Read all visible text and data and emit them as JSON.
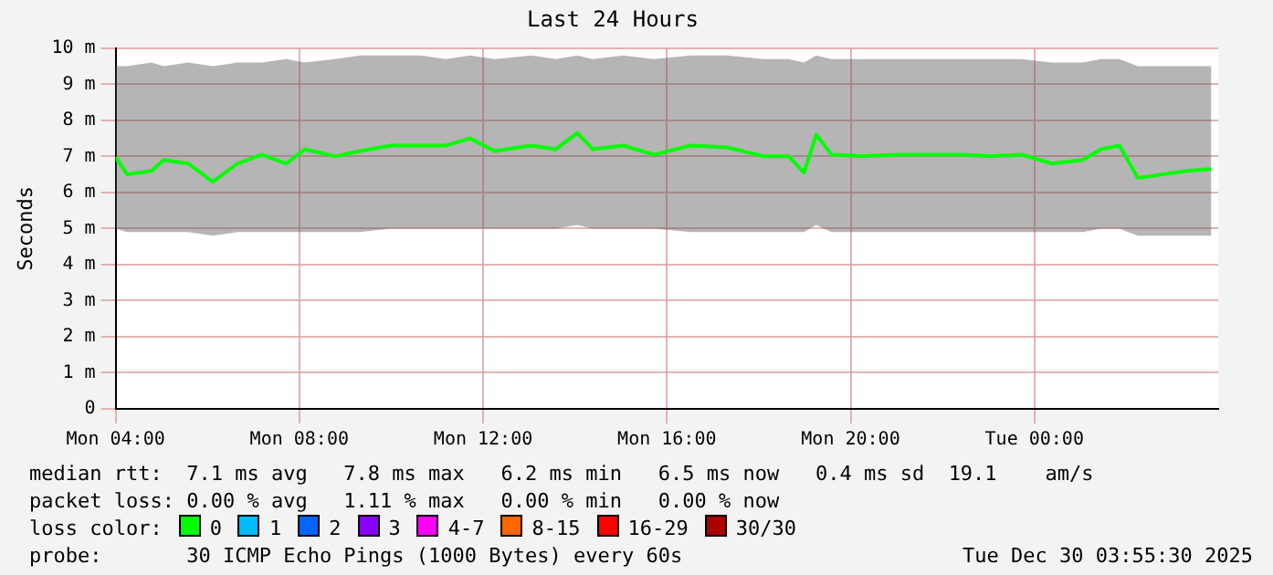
{
  "chart_data": {
    "type": "line",
    "title": "Last 24 Hours",
    "ylabel": "Seconds",
    "x": [
      "2025-12-29T04:00",
      "2025-12-29T04:15",
      "2025-12-29T04:47",
      "2025-12-29T05:03",
      "2025-12-29T05:35",
      "2025-12-29T06:07",
      "2025-12-29T06:39",
      "2025-12-29T07:11",
      "2025-12-29T07:43",
      "2025-12-29T08:07",
      "2025-12-29T08:47",
      "2025-12-29T09:19",
      "2025-12-29T09:59",
      "2025-12-29T10:39",
      "2025-12-29T11:11",
      "2025-12-29T11:43",
      "2025-12-29T12:15",
      "2025-12-29T13:03",
      "2025-12-29T13:35",
      "2025-12-29T14:03",
      "2025-12-29T14:23",
      "2025-12-29T15:03",
      "2025-12-29T15:43",
      "2025-12-29T16:31",
      "2025-12-29T17:19",
      "2025-12-29T18:07",
      "2025-12-29T18:39",
      "2025-12-29T18:59",
      "2025-12-29T19:15",
      "2025-12-29T19:35",
      "2025-12-29T20:15",
      "2025-12-29T21:03",
      "2025-12-29T21:43",
      "2025-12-29T22:23",
      "2025-12-29T23:03",
      "2025-12-29T23:43",
      "2025-12-30T00:23",
      "2025-12-30T01:03",
      "2025-12-30T01:27",
      "2025-12-30T01:51",
      "2025-12-30T02:15",
      "2025-12-30T02:47",
      "2025-12-30T03:19",
      "2025-12-30T03:51"
    ],
    "series": [
      {
        "color": "#00ff00",
        "values": [
          6.98,
          6.5,
          6.6,
          6.9,
          6.8,
          6.3,
          6.8,
          7.05,
          6.8,
          7.2,
          7.0,
          7.15,
          7.3,
          7.3,
          7.3,
          7.5,
          7.15,
          7.3,
          7.2,
          7.65,
          7.2,
          7.3,
          7.05,
          7.3,
          7.25,
          7.0,
          7.0,
          6.55,
          7.6,
          7.05,
          7.0,
          7.05,
          7.05,
          7.05,
          7.0,
          7.05,
          6.8,
          6.9,
          7.2,
          7.3,
          6.4,
          6.5,
          6.6,
          6.65
        ],
        "lower": [
          5.0,
          4.9,
          4.9,
          4.9,
          4.9,
          4.8,
          4.9,
          4.9,
          4.9,
          4.9,
          4.9,
          4.9,
          5.0,
          5.0,
          5.0,
          5.0,
          5.0,
          5.0,
          5.0,
          5.1,
          5.0,
          5.0,
          5.0,
          4.9,
          4.9,
          4.9,
          4.9,
          4.9,
          5.1,
          4.9,
          4.9,
          4.9,
          4.9,
          4.9,
          4.9,
          4.9,
          4.9,
          4.9,
          5.0,
          5.0,
          4.8,
          4.8,
          4.8,
          4.8
        ],
        "upper": [
          9.5,
          9.5,
          9.6,
          9.5,
          9.6,
          9.5,
          9.6,
          9.6,
          9.7,
          9.6,
          9.7,
          9.8,
          9.8,
          9.8,
          9.7,
          9.8,
          9.7,
          9.8,
          9.7,
          9.8,
          9.7,
          9.8,
          9.7,
          9.8,
          9.8,
          9.7,
          9.7,
          9.6,
          9.8,
          9.7,
          9.7,
          9.7,
          9.7,
          9.7,
          9.7,
          9.7,
          9.6,
          9.6,
          9.7,
          9.7,
          9.5,
          9.5,
          9.5,
          9.5
        ]
      }
    ],
    "xlim": [
      "2025-12-29T04:00",
      "2025-12-30T04:00"
    ],
    "xticks": [
      {
        "value": "2025-12-29T04:00",
        "label": "Mon 04:00"
      },
      {
        "value": "2025-12-29T08:00",
        "label": "Mon 08:00"
      },
      {
        "value": "2025-12-29T12:00",
        "label": "Mon 12:00"
      },
      {
        "value": "2025-12-29T16:00",
        "label": "Mon 16:00"
      },
      {
        "value": "2025-12-29T20:00",
        "label": "Mon 20:00"
      },
      {
        "value": "2025-12-30T00:00",
        "label": "Tue 00:00"
      }
    ],
    "ylim": [
      0,
      10
    ],
    "yticks": [
      0,
      {
        "value": 1,
        "label": "1 m"
      },
      {
        "value": 2,
        "label": "2 m"
      },
      {
        "value": 3,
        "label": "3 m"
      },
      {
        "value": 4,
        "label": "4 m"
      },
      {
        "value": 5,
        "label": "5 m"
      },
      {
        "value": 6,
        "label": "6 m"
      },
      {
        "value": 7,
        "label": "7 m"
      },
      {
        "value": 8,
        "label": "8 m"
      },
      {
        "value": 9,
        "label": "9 m"
      },
      {
        "value": 10,
        "label": "10 m"
      }
    ],
    "grid": true,
    "legend": false,
    "marker": "none",
    "line_style": "solid",
    "annotations": [
      "median rtt:  7.1 ms avg   7.8 ms max   6.2 ms min   6.5 ms now   0.4 ms sd  19.1    am/s",
      "packet loss: 0.00 % avg   1.11 % max   0.00 % min   0.00 % now",
      "loss color:",
      "0",
      "1",
      "2",
      "3",
      "4-7",
      "8-15",
      "16-29",
      "30/30",
      "probe:       30 ICMP Echo Pings (1000 Bytes) every 60s",
      "Tue Dec 30 03:55:30 2025"
    ]
  }
}
